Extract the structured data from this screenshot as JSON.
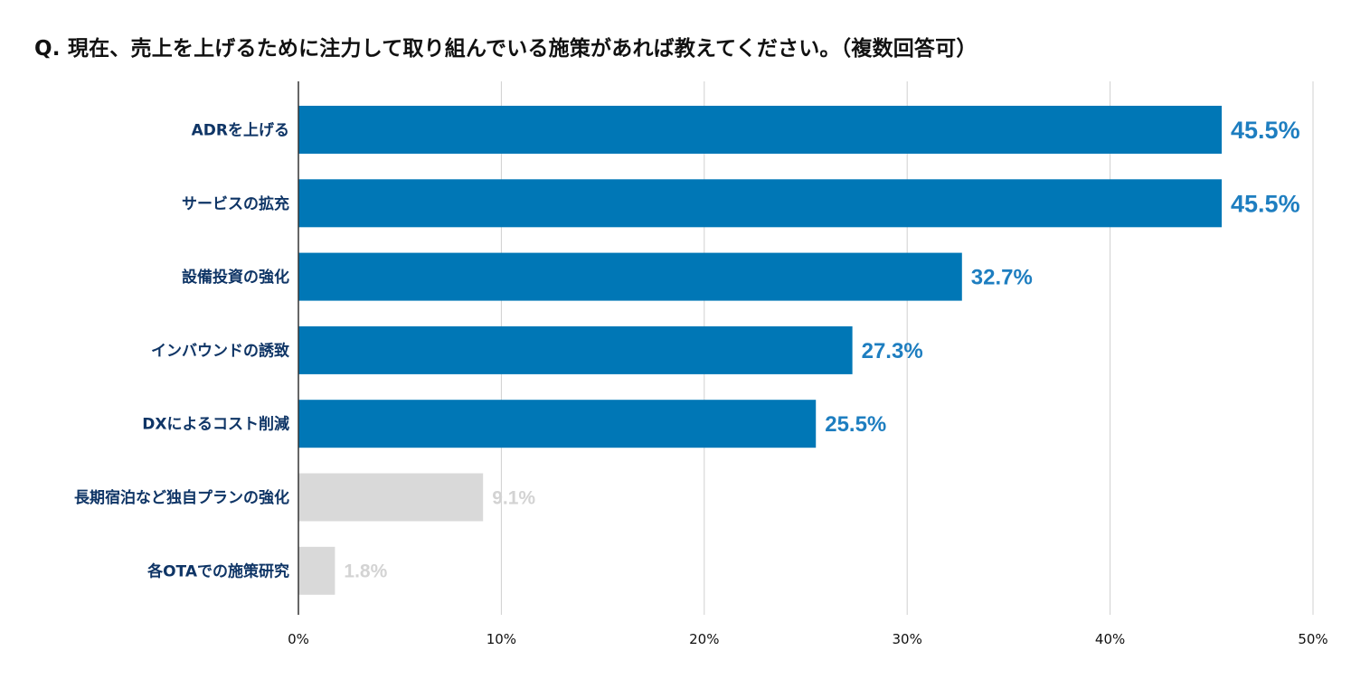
{
  "chart_data": {
    "type": "bar",
    "orientation": "horizontal",
    "title": "Q. 現在、売上を上げるために注力して取り組んでいる施策があれば教えてください。（複数回答可）",
    "categories": [
      "ADRを上げる",
      "サービスの拡充",
      "設備投資の強化",
      "インバウンドの誘致",
      "DXによるコスト削減",
      "長期宿泊など独自プランの強化",
      "各OTAでの施策研究"
    ],
    "values": [
      45.5,
      45.5,
      32.7,
      27.3,
      25.5,
      9.1,
      1.8
    ],
    "value_labels": [
      "45.5%",
      "45.5%",
      "32.7%",
      "27.3%",
      "25.5%",
      "9.1%",
      "1.8%"
    ],
    "highlighted": [
      true,
      true,
      true,
      true,
      true,
      false,
      false
    ],
    "xlim": [
      0,
      50
    ],
    "xticks": [
      "0%",
      "10%",
      "20%",
      "30%",
      "40%",
      "50%"
    ],
    "xlabel": "",
    "ylabel": "",
    "grid": true,
    "colors": {
      "bar_highlight": "#0077b6",
      "bar_muted": "#d9d9d9",
      "label_highlight": "#1e7ec0",
      "label_muted": "#d3d3d3",
      "category_text": "#0f3566",
      "grid": "#d0d0d0",
      "axis": "#333333"
    }
  }
}
